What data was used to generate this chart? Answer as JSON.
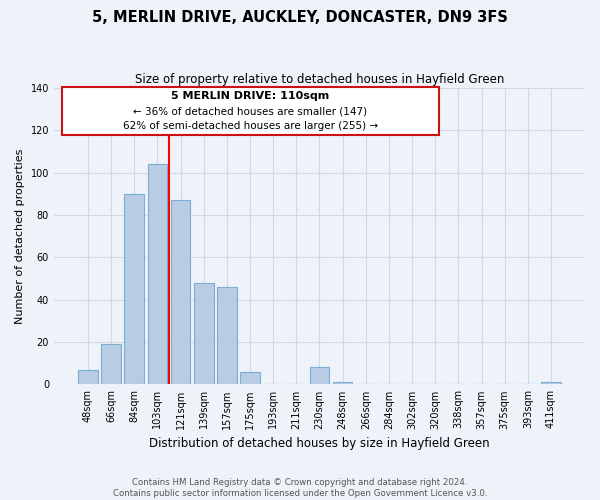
{
  "title": "5, MERLIN DRIVE, AUCKLEY, DONCASTER, DN9 3FS",
  "subtitle": "Size of property relative to detached houses in Hayfield Green",
  "xlabel": "Distribution of detached houses by size in Hayfield Green",
  "ylabel": "Number of detached properties",
  "categories": [
    "48sqm",
    "66sqm",
    "84sqm",
    "103sqm",
    "121sqm",
    "139sqm",
    "157sqm",
    "175sqm",
    "193sqm",
    "211sqm",
    "230sqm",
    "248sqm",
    "266sqm",
    "284sqm",
    "302sqm",
    "320sqm",
    "338sqm",
    "357sqm",
    "375sqm",
    "393sqm",
    "411sqm"
  ],
  "values": [
    7,
    19,
    90,
    104,
    87,
    48,
    46,
    6,
    0,
    0,
    8,
    1,
    0,
    0,
    0,
    0,
    0,
    0,
    0,
    0,
    1
  ],
  "bar_color": "#b8cce4",
  "bar_edge_color": "#7bafd4",
  "red_line_x": 3.5,
  "annotation_title": "5 MERLIN DRIVE: 110sqm",
  "annotation_line1": "← 36% of detached houses are smaller (147)",
  "annotation_line2": "62% of semi-detached houses are larger (255) →",
  "ylim": [
    0,
    140
  ],
  "yticks": [
    0,
    20,
    40,
    60,
    80,
    100,
    120,
    140
  ],
  "footer1": "Contains HM Land Registry data © Crown copyright and database right 2024.",
  "footer2": "Contains public sector information licensed under the Open Government Licence v3.0.",
  "background_color": "#eef2f9",
  "plot_background": "#eef2f9",
  "grid_color": "#d0d8ea"
}
